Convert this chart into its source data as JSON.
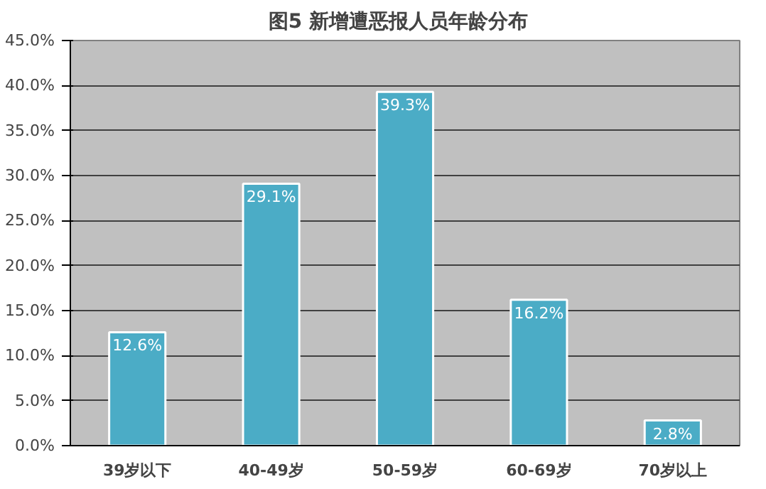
{
  "chart_data": {
    "type": "bar",
    "title": "图5   新增遭恶报人员年龄分布",
    "categories": [
      "39岁以下",
      "40-49岁",
      "50-59岁",
      "60-69岁",
      "70岁以上"
    ],
    "values": [
      12.6,
      29.1,
      39.3,
      16.2,
      2.8
    ],
    "value_labels": [
      "12.6%",
      "29.1%",
      "39.3%",
      "16.2%",
      "2.8%"
    ],
    "color": "#4bacc6",
    "ylim": [
      0,
      45
    ],
    "yticks": [
      {
        "value": 0,
        "label": "0.0%"
      },
      {
        "value": 5,
        "label": "5.0%"
      },
      {
        "value": 10,
        "label": "10.0%"
      },
      {
        "value": 15,
        "label": "15.0%"
      },
      {
        "value": 20,
        "label": "20.0%"
      },
      {
        "value": 25,
        "label": "25.0%"
      },
      {
        "value": 30,
        "label": "30.0%"
      },
      {
        "value": 35,
        "label": "35.0%"
      },
      {
        "value": 40,
        "label": "40.0%"
      },
      {
        "value": 45,
        "label": "45.0%"
      }
    ],
    "grid": "y"
  }
}
